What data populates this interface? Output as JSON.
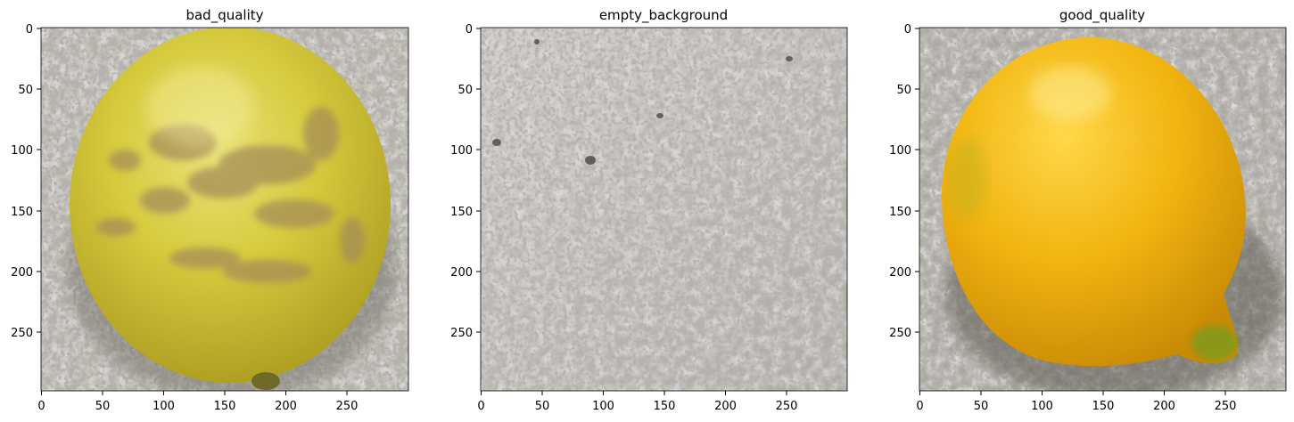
{
  "figure": {
    "panels": [
      {
        "title": "bad_quality",
        "subject": "lemon-with-brown-blemishes"
      },
      {
        "title": "empty_background",
        "subject": "textured-gray-wall"
      },
      {
        "title": "good_quality",
        "subject": "bright-yellow-lemon"
      }
    ],
    "x_ticks": [
      "0",
      "50",
      "100",
      "150",
      "200",
      "250"
    ],
    "y_ticks": [
      "0",
      "50",
      "100",
      "150",
      "200",
      "250"
    ],
    "colors": {
      "background_gray": "#bdbab4",
      "bad_lemon_yellow": "#d6c83a",
      "bad_lemon_blemish": "#a98f58",
      "good_lemon_yellow": "#f0b812",
      "good_lemon_tip": "#7f9a1c"
    }
  }
}
